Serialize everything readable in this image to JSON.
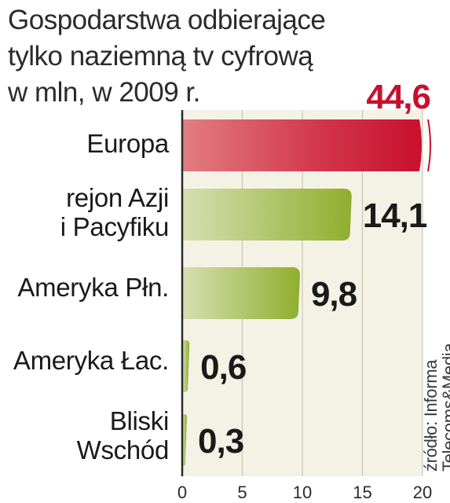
{
  "chart_data": {
    "type": "bar",
    "orientation": "horizontal",
    "title_lines": [
      "Gospodarstwa odbierające",
      "tylko naziemną tv cyfrową",
      "w mln, w 2009 r."
    ],
    "categories": [
      [
        "Europa"
      ],
      [
        "rejon Azji",
        "i Pacyfiku"
      ],
      [
        "Ameryka Płn."
      ],
      [
        "Ameryka Łac."
      ],
      [
        "Bliski",
        "Wschód"
      ]
    ],
    "values": [
      44.6,
      14.1,
      9.8,
      0.6,
      0.3
    ],
    "value_labels": [
      "44,6",
      "14,1",
      "9,8",
      "0,6",
      "0,3"
    ],
    "xlim": [
      0,
      20
    ],
    "axis_broken_first_bar": true,
    "x_ticks": [
      "0",
      "5",
      "10",
      "15",
      "20"
    ],
    "grid": true,
    "source_lines": [
      "źródło: Informa",
      "Telecoms&Media"
    ],
    "colors": {
      "highlight_bar": "#c8102e",
      "bar": "#8fae2e",
      "highlight_label": "#c8102e",
      "label": "#1a1a1a",
      "plot_bg": "#f4f2e4",
      "axis": "#2a2a2a"
    }
  }
}
